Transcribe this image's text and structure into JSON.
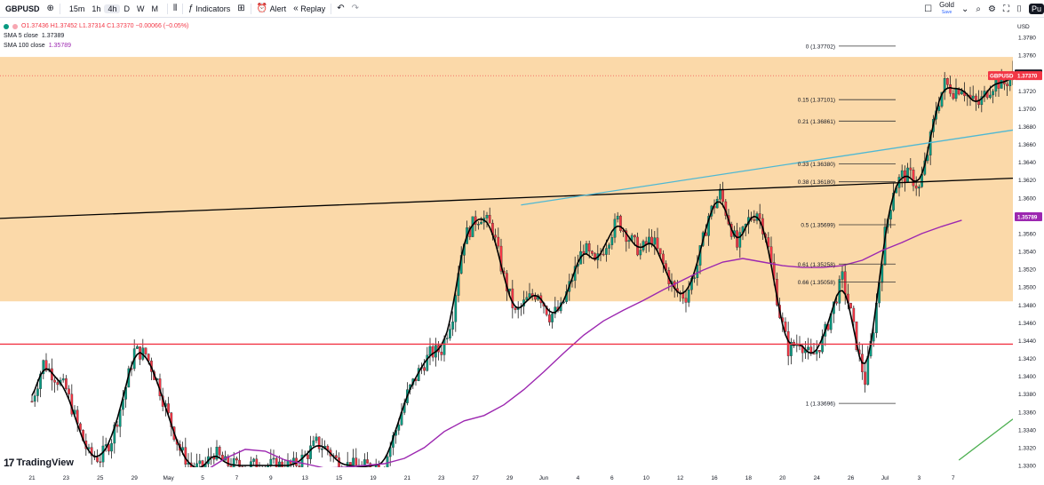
{
  "toolbar": {
    "symbol": "GBPUSD",
    "timeframes": [
      "15m",
      "1h",
      "4h",
      "D",
      "W",
      "M"
    ],
    "active_timeframe": "4h",
    "indicators_label": "Indicators",
    "alert_label": "Alert",
    "replay_label": "Replay",
    "gold_label": "Gold",
    "gold_sub": "Save",
    "publish_label": "Pu"
  },
  "legend": {
    "ohlc": "O1.37436  H1.37452  L1.37314  C1.37370  −0.00066 (−0.05%)",
    "sma5": "SMA 5 close",
    "sma5_value": "1.37389",
    "sma100": "SMA 100 close",
    "sma100_value": "1.35789"
  },
  "logo_text": "TradingView",
  "colors": {
    "up": "#089981",
    "down": "#f23645",
    "zone": "#fbd9a9",
    "sma5": "#000000",
    "sma100": "#9c27b0",
    "support_line": "#f23645",
    "trend_black": "#000000",
    "trend_blue": "#4fb8d3",
    "trend_green": "#4caf50",
    "fib": "#333333"
  },
  "chart_data": {
    "type": "candlestick",
    "symbol": "GBPUSD",
    "timeframe": "4h",
    "currency": "USD",
    "ylim": [
      1.3296,
      1.381
    ],
    "y_ticks": [
      1.33,
      1.332,
      1.334,
      1.336,
      1.338,
      1.34,
      1.342,
      1.344,
      1.346,
      1.348,
      1.35,
      1.352,
      1.354,
      1.356,
      1.358,
      1.36,
      1.362,
      1.364,
      1.366,
      1.368,
      1.37,
      1.372,
      1.374,
      1.376,
      1.378
    ],
    "x_ticks": [
      "21",
      "23",
      "25",
      "29",
      "May",
      "5",
      "7",
      "9",
      "13",
      "15",
      "19",
      "21",
      "23",
      "27",
      "29",
      "Jun",
      "4",
      "6",
      "10",
      "12",
      "16",
      "18",
      "20",
      "24",
      "26",
      "Jul",
      "3",
      "7"
    ],
    "x_tick_bars": [
      0,
      12,
      24,
      36,
      48,
      60,
      72,
      84,
      96,
      108,
      120,
      132,
      144,
      156,
      168,
      180,
      192,
      204,
      216,
      228,
      240,
      252,
      264,
      276,
      288,
      300,
      312,
      324
    ],
    "close_path": [
      [
        0,
        1.3372
      ],
      [
        4,
        1.3415
      ],
      [
        8,
        1.34
      ],
      [
        12,
        1.3385
      ],
      [
        16,
        1.3345
      ],
      [
        20,
        1.3312
      ],
      [
        24,
        1.3308
      ],
      [
        28,
        1.333
      ],
      [
        32,
        1.3375
      ],
      [
        36,
        1.3428
      ],
      [
        40,
        1.3425
      ],
      [
        44,
        1.3395
      ],
      [
        48,
        1.3355
      ],
      [
        52,
        1.3318
      ],
      [
        56,
        1.3298
      ],
      [
        60,
        1.3296
      ],
      [
        64,
        1.3315
      ],
      [
        68,
        1.3302
      ],
      [
        72,
        1.33
      ],
      [
        76,
        1.33
      ],
      [
        80,
        1.33
      ],
      [
        84,
        1.33
      ],
      [
        88,
        1.33
      ],
      [
        92,
        1.33
      ],
      [
        96,
        1.331
      ],
      [
        100,
        1.3325
      ],
      [
        104,
        1.3318
      ],
      [
        108,
        1.3302
      ],
      [
        112,
        1.33
      ],
      [
        116,
        1.3298
      ],
      [
        120,
        1.33
      ],
      [
        124,
        1.3302
      ],
      [
        128,
        1.334
      ],
      [
        132,
        1.338
      ],
      [
        136,
        1.3405
      ],
      [
        140,
        1.3425
      ],
      [
        144,
        1.343
      ],
      [
        148,
        1.347
      ],
      [
        150,
        1.352
      ],
      [
        152,
        1.3555
      ],
      [
        156,
        1.3575
      ],
      [
        158,
        1.358
      ],
      [
        162,
        1.3565
      ],
      [
        166,
        1.351
      ],
      [
        170,
        1.347
      ],
      [
        174,
        1.3485
      ],
      [
        178,
        1.3495
      ],
      [
        182,
        1.3468
      ],
      [
        186,
        1.3475
      ],
      [
        190,
        1.351
      ],
      [
        194,
        1.3545
      ],
      [
        198,
        1.3525
      ],
      [
        202,
        1.355
      ],
      [
        206,
        1.3575
      ],
      [
        210,
        1.3555
      ],
      [
        214,
        1.354
      ],
      [
        218,
        1.3555
      ],
      [
        222,
        1.3525
      ],
      [
        226,
        1.3495
      ],
      [
        230,
        1.349
      ],
      [
        234,
        1.3525
      ],
      [
        238,
        1.358
      ],
      [
        242,
        1.3605
      ],
      [
        245,
        1.3575
      ],
      [
        248,
        1.3545
      ],
      [
        252,
        1.3575
      ],
      [
        255,
        1.3585
      ],
      [
        258,
        1.356
      ],
      [
        260,
        1.3525
      ],
      [
        263,
        1.347
      ],
      [
        266,
        1.343
      ],
      [
        270,
        1.344
      ],
      [
        274,
        1.342
      ],
      [
        278,
        1.344
      ],
      [
        282,
        1.348
      ],
      [
        285,
        1.351
      ],
      [
        288,
        1.347
      ],
      [
        291,
        1.342
      ],
      [
        293,
        1.3395
      ],
      [
        296,
        1.3455
      ],
      [
        300,
        1.356
      ],
      [
        303,
        1.361
      ],
      [
        306,
        1.3625
      ],
      [
        309,
        1.3625
      ],
      [
        312,
        1.361
      ],
      [
        315,
        1.365
      ],
      [
        318,
        1.37
      ],
      [
        321,
        1.3728
      ],
      [
        324,
        1.372
      ],
      [
        327,
        1.3725
      ],
      [
        330,
        1.371
      ],
      [
        333,
        1.3705
      ],
      [
        336,
        1.372
      ],
      [
        339,
        1.373
      ],
      [
        342,
        1.3728
      ],
      [
        345,
        1.3737
      ]
    ],
    "sma5_close": 1.37389,
    "sma100_path": [
      [
        62,
        1.3296
      ],
      [
        68,
        1.3308
      ],
      [
        75,
        1.3318
      ],
      [
        82,
        1.3316
      ],
      [
        89,
        1.3306
      ],
      [
        96,
        1.3302
      ],
      [
        103,
        1.3297
      ],
      [
        110,
        1.3298
      ],
      [
        117,
        1.33
      ],
      [
        124,
        1.3302
      ],
      [
        131,
        1.3308
      ],
      [
        138,
        1.332
      ],
      [
        145,
        1.3338
      ],
      [
        152,
        1.335
      ],
      [
        159,
        1.3356
      ],
      [
        166,
        1.3368
      ],
      [
        173,
        1.3385
      ],
      [
        180,
        1.3405
      ],
      [
        187,
        1.3426
      ],
      [
        194,
        1.3446
      ],
      [
        201,
        1.3462
      ],
      [
        208,
        1.3474
      ],
      [
        215,
        1.3485
      ],
      [
        222,
        1.3497
      ],
      [
        229,
        1.3508
      ],
      [
        236,
        1.3519
      ],
      [
        243,
        1.3528
      ],
      [
        250,
        1.3532
      ],
      [
        257,
        1.3528
      ],
      [
        264,
        1.3524
      ],
      [
        271,
        1.3522
      ],
      [
        278,
        1.3522
      ],
      [
        285,
        1.3524
      ],
      [
        292,
        1.353
      ],
      [
        299,
        1.3541
      ],
      [
        306,
        1.355
      ],
      [
        313,
        1.356
      ],
      [
        320,
        1.3568
      ],
      [
        327,
        1.3575
      ]
    ],
    "current_price": 1.3737,
    "sma5_value": 1.37389,
    "sma100_value": 1.35789,
    "zone": [
      1.3484,
      1.3758
    ],
    "support_level": 1.3436,
    "trendlines": [
      {
        "color": "black",
        "points": [
          [
            0,
            1.3577
          ],
          [
            350,
            1.3622
          ]
        ]
      },
      {
        "color": "blue",
        "points": [
          [
            172,
            1.3592
          ],
          [
            350,
            1.3676
          ]
        ]
      },
      {
        "color": "green",
        "points": [
          [
            326,
            1.3306
          ],
          [
            350,
            1.3352
          ]
        ]
      }
    ],
    "fibonacci": [
      {
        "ratio": "0",
        "price": 1.37702
      },
      {
        "ratio": "0.15",
        "price": 1.37101
      },
      {
        "ratio": "0.21",
        "price": 1.36861
      },
      {
        "ratio": "0.33",
        "price": 1.3638
      },
      {
        "ratio": "0.38",
        "price": 1.3618
      },
      {
        "ratio": "0.5",
        "price": 1.35699
      },
      {
        "ratio": "0.61",
        "price": 1.35258
      },
      {
        "ratio": "0.66",
        "price": 1.35058
      },
      {
        "ratio": "1",
        "price": 1.33696
      }
    ],
    "price_labels": {
      "symbol": "GBPUSD",
      "current": "1.37370",
      "sma5": "1.37389",
      "sma100": "1.35789"
    },
    "axis_currency": "USD"
  }
}
